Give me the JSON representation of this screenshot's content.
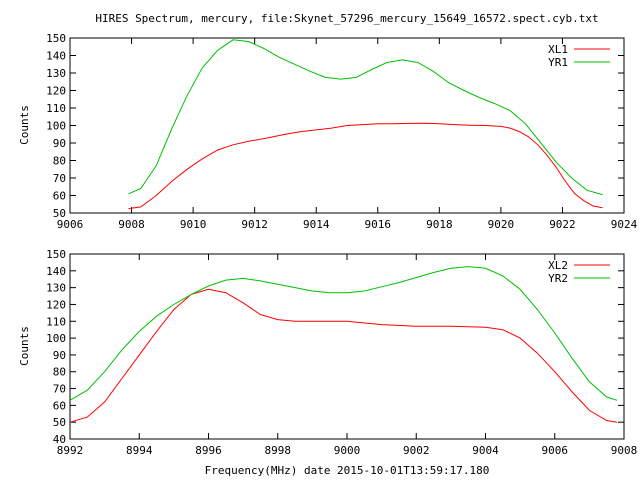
{
  "page": {
    "title": "HIRES Spectrum, mercury, file:Skynet_57296_mercury_15649_16572.spect.cyb.txt",
    "xlabel": "Frequency(MHz) date 2015-10-01T13:59:17.180"
  },
  "chart_data": [
    {
      "type": "line",
      "title": "HIRES Spectrum, mercury, file:Skynet_57296_mercury_15649_16572.spect.cyb.txt",
      "xlabel": "",
      "ylabel": "Counts",
      "xlim": [
        9006,
        9024
      ],
      "ylim": [
        50,
        150
      ],
      "xticks": [
        9006,
        9008,
        9010,
        9012,
        9014,
        9016,
        9018,
        9020,
        9022,
        9024
      ],
      "yticks": [
        50,
        60,
        70,
        80,
        90,
        100,
        110,
        120,
        130,
        140,
        150
      ],
      "grid": false,
      "legend": "top-right",
      "series": [
        {
          "name": "XL1",
          "color": "#ff0000",
          "x": [
            9007.9,
            9008.3,
            9008.8,
            9009.3,
            9009.8,
            9010.3,
            9010.8,
            9011.3,
            9011.8,
            9012.3,
            9013.0,
            9013.5,
            9014.0,
            9014.5,
            9015.0,
            9015.5,
            9016.0,
            9016.5,
            9017.0,
            9017.5,
            9018.0,
            9018.5,
            9019.0,
            9019.5,
            9020.0,
            9020.3,
            9020.6,
            9020.9,
            9021.2,
            9021.5,
            9021.8,
            9022.1,
            9022.4,
            9022.7,
            9023.0,
            9023.3
          ],
          "y": [
            52.5,
            53.5,
            60,
            68,
            75,
            81,
            86,
            89,
            91,
            92.5,
            95,
            96.5,
            97.5,
            98.5,
            100,
            100.5,
            101,
            101,
            101.2,
            101.3,
            101,
            100.5,
            100.2,
            100,
            99.5,
            98.5,
            96.5,
            93.5,
            89,
            83,
            76,
            68,
            61,
            57,
            54,
            53
          ]
        },
        {
          "name": "YR1",
          "color": "#00c000",
          "x": [
            9007.9,
            9008.3,
            9008.8,
            9009.3,
            9009.8,
            9010.3,
            9010.8,
            9011.3,
            9011.8,
            9012.3,
            9012.8,
            9013.3,
            9013.8,
            9014.3,
            9014.8,
            9015.3,
            9015.8,
            9016.3,
            9016.8,
            9017.3,
            9017.8,
            9018.3,
            9018.8,
            9019.3,
            9019.8,
            9020.3,
            9020.8,
            9021.3,
            9021.8,
            9022.3,
            9022.8,
            9023.3
          ],
          "y": [
            61,
            64,
            77,
            98,
            117,
            133,
            143,
            149,
            148,
            144,
            139,
            135,
            131,
            127.5,
            126.5,
            127.5,
            132,
            136,
            137.5,
            136,
            131,
            124.5,
            120,
            116,
            112.5,
            108.5,
            101,
            90,
            79,
            70,
            63,
            60.5
          ]
        }
      ]
    },
    {
      "type": "line",
      "title": "",
      "xlabel": "Frequency(MHz) date 2015-10-01T13:59:17.180",
      "ylabel": "Counts",
      "xlim": [
        8992,
        9008
      ],
      "ylim": [
        40,
        150
      ],
      "xticks": [
        8992,
        8994,
        8996,
        8998,
        9000,
        9002,
        9004,
        9006,
        9008
      ],
      "yticks": [
        40,
        50,
        60,
        70,
        80,
        90,
        100,
        110,
        120,
        130,
        140,
        150
      ],
      "grid": false,
      "legend": "top-right",
      "series": [
        {
          "name": "XL2",
          "color": "#ff0000",
          "x": [
            8992.0,
            8992.5,
            8993.0,
            8993.5,
            8994.0,
            8994.5,
            8995.0,
            8995.5,
            8996.0,
            8996.5,
            8997.0,
            8997.5,
            8998.0,
            8998.5,
            8999.0,
            9000.0,
            9001.0,
            9002.0,
            9003.0,
            9004.0,
            9004.5,
            9005.0,
            9005.5,
            9006.0,
            9006.5,
            9007.0,
            9007.5,
            9007.8
          ],
          "y": [
            50,
            53,
            62,
            76,
            90,
            104,
            117,
            126,
            129,
            127,
            121,
            114,
            111,
            110,
            110,
            110,
            108,
            107,
            107,
            106.5,
            105,
            100,
            91,
            80,
            68,
            57,
            51,
            50
          ]
        },
        {
          "name": "YR2",
          "color": "#00c000",
          "x": [
            8992.0,
            8992.5,
            8993.0,
            8993.5,
            8994.0,
            8994.5,
            8995.0,
            8995.5,
            8996.0,
            8996.5,
            8997.0,
            8997.5,
            8998.0,
            8998.5,
            8999.0,
            8999.5,
            9000.0,
            9000.5,
            9001.0,
            9001.5,
            9002.0,
            9002.5,
            9003.0,
            9003.5,
            9004.0,
            9004.5,
            9005.0,
            9005.5,
            9006.0,
            9006.5,
            9007.0,
            9007.5,
            9007.8
          ],
          "y": [
            63,
            69,
            80,
            93,
            104,
            113,
            120,
            126,
            131,
            134.5,
            135.5,
            134,
            132,
            130,
            128,
            127,
            127,
            128,
            130.5,
            133,
            136,
            139,
            141.5,
            142.5,
            141.5,
            137,
            129,
            117,
            103,
            88,
            74,
            65,
            63
          ]
        }
      ]
    }
  ]
}
